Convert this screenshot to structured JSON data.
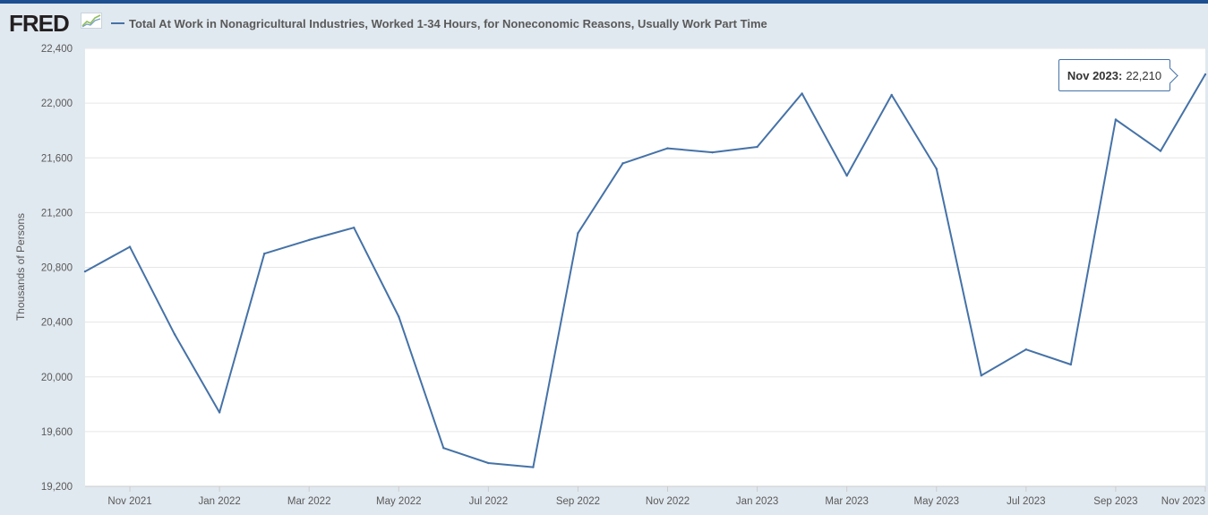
{
  "header": {
    "logo_text": "FRED",
    "logo_icon": "fred-graph-icon",
    "legend_label": "Total At Work in Nonagricultural Industries, Worked 1-34 Hours, for Noneconomic Reasons, Usually Work Part Time"
  },
  "colors": {
    "top_bar": "#1d4f91",
    "background": "#e1e9f0",
    "series_line": "#4572a7",
    "grid": "#e6e6e6",
    "axis_text": "#595959"
  },
  "tooltip": {
    "date": "Nov 2023:",
    "value": "22,210"
  },
  "chart_data": {
    "type": "line",
    "title": "",
    "xlabel": "",
    "ylabel": "Thousands of Persons",
    "ylim": [
      19200,
      22400
    ],
    "yticks": [
      19200,
      19600,
      20000,
      20400,
      20800,
      21200,
      21600,
      22000,
      22400
    ],
    "ytick_labels": [
      "19,200",
      "19,600",
      "20,000",
      "20,400",
      "20,800",
      "21,200",
      "21,600",
      "22,000",
      "22,400"
    ],
    "xlim": [
      "2021-10",
      "2023-11"
    ],
    "xtick_labels": [
      {
        "date": "2021-11",
        "label": "Nov 2021"
      },
      {
        "date": "2022-01",
        "label": "Jan 2022"
      },
      {
        "date": "2022-03",
        "label": "Mar 2022"
      },
      {
        "date": "2022-05",
        "label": "May 2022"
      },
      {
        "date": "2022-07",
        "label": "Jul 2022"
      },
      {
        "date": "2022-09",
        "label": "Sep 2022"
      },
      {
        "date": "2022-11",
        "label": "Nov 2022"
      },
      {
        "date": "2023-01",
        "label": "Jan 2023"
      },
      {
        "date": "2023-03",
        "label": "Mar 2023"
      },
      {
        "date": "2023-05",
        "label": "May 2023"
      },
      {
        "date": "2023-07",
        "label": "Jul 2023"
      },
      {
        "date": "2023-09",
        "label": "Sep 2023"
      },
      {
        "date": "2023-11",
        "label": "Nov 2023"
      }
    ],
    "grid": true,
    "legend": "top-left",
    "series": [
      {
        "name": "Total At Work in Nonagricultural Industries, Worked 1-34 Hours, for Noneconomic Reasons, Usually Work Part Time",
        "x": [
          "2021-10",
          "2021-11",
          "2021-12",
          "2022-01",
          "2022-02",
          "2022-03",
          "2022-04",
          "2022-05",
          "2022-06",
          "2022-07",
          "2022-08",
          "2022-09",
          "2022-10",
          "2022-11",
          "2022-12",
          "2023-01",
          "2023-02",
          "2023-03",
          "2023-04",
          "2023-05",
          "2023-06",
          "2023-07",
          "2023-08",
          "2023-09",
          "2023-10",
          "2023-11"
        ],
        "values": [
          20770,
          20950,
          20310,
          19740,
          20900,
          21000,
          21090,
          20440,
          19480,
          19370,
          19340,
          21050,
          21560,
          21670,
          21640,
          21680,
          22070,
          21470,
          22060,
          21520,
          20010,
          20200,
          20090,
          21880,
          21650,
          22210
        ]
      }
    ]
  }
}
